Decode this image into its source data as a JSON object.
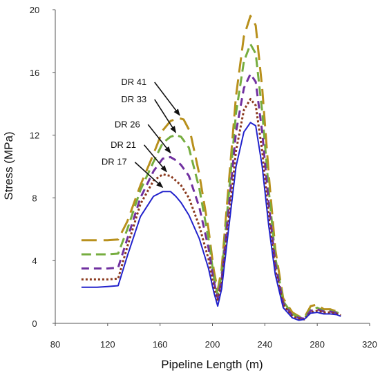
{
  "chart_data": {
    "type": "line",
    "xlabel": "Pipeline Length (m)",
    "ylabel": "Stress (MPa)",
    "xlim": [
      80,
      320
    ],
    "ylim": [
      0,
      20
    ],
    "x_ticks": [
      80,
      120,
      160,
      200,
      240,
      280,
      320
    ],
    "y_ticks": [
      0,
      4,
      8,
      12,
      16,
      20
    ],
    "grid": false,
    "legend": "none",
    "series": [
      {
        "name": "DR 41",
        "color": "#b8901c",
        "dash": "long-dash",
        "points": [
          [
            100,
            5.3
          ],
          [
            112,
            5.3
          ],
          [
            120,
            5.3
          ],
          [
            128,
            5.35
          ],
          [
            135,
            6.5
          ],
          [
            145,
            8.8
          ],
          [
            155,
            10.8
          ],
          [
            162,
            12.3
          ],
          [
            168,
            12.9
          ],
          [
            174,
            13.1
          ],
          [
            178,
            13.0
          ],
          [
            183,
            12.2
          ],
          [
            190,
            9.5
          ],
          [
            197,
            6.0
          ],
          [
            201,
            3.4
          ],
          [
            204,
            2.1
          ],
          [
            207,
            3.5
          ],
          [
            212,
            8.5
          ],
          [
            218,
            14.5
          ],
          [
            224,
            18.3
          ],
          [
            229,
            19.6
          ],
          [
            233,
            19.0
          ],
          [
            238,
            15.0
          ],
          [
            243,
            9.5
          ],
          [
            248,
            4.7
          ],
          [
            254,
            1.6
          ],
          [
            261,
            0.7
          ],
          [
            266,
            0.45
          ],
          [
            270,
            0.35
          ],
          [
            275,
            1.1
          ],
          [
            280,
            1.2
          ],
          [
            285,
            0.9
          ],
          [
            290,
            0.9
          ],
          [
            295,
            0.75
          ],
          [
            298,
            0.6
          ]
        ]
      },
      {
        "name": "DR 33",
        "color": "#76ad3f",
        "dash": "medium-dash",
        "points": [
          [
            100,
            4.4
          ],
          [
            112,
            4.4
          ],
          [
            120,
            4.4
          ],
          [
            128,
            4.45
          ],
          [
            135,
            6.0
          ],
          [
            145,
            8.5
          ],
          [
            155,
            10.3
          ],
          [
            162,
            11.5
          ],
          [
            168,
            11.9
          ],
          [
            172,
            12.0
          ],
          [
            176,
            11.9
          ],
          [
            182,
            11.2
          ],
          [
            190,
            8.6
          ],
          [
            197,
            5.4
          ],
          [
            201,
            3.0
          ],
          [
            204,
            1.8
          ],
          [
            207,
            3.1
          ],
          [
            212,
            7.8
          ],
          [
            218,
            13.4
          ],
          [
            224,
            16.7
          ],
          [
            229,
            17.8
          ],
          [
            233,
            17.2
          ],
          [
            238,
            13.5
          ],
          [
            243,
            8.5
          ],
          [
            248,
            4.2
          ],
          [
            254,
            1.4
          ],
          [
            261,
            0.6
          ],
          [
            266,
            0.4
          ],
          [
            270,
            0.3
          ],
          [
            275,
            0.9
          ],
          [
            280,
            1.0
          ],
          [
            285,
            0.8
          ],
          [
            290,
            0.8
          ],
          [
            295,
            0.7
          ],
          [
            298,
            0.55
          ]
        ]
      },
      {
        "name": "DR 26",
        "color": "#7030a0",
        "dash": "dash",
        "points": [
          [
            100,
            3.5
          ],
          [
            112,
            3.5
          ],
          [
            120,
            3.5
          ],
          [
            128,
            3.55
          ],
          [
            135,
            5.4
          ],
          [
            145,
            8.0
          ],
          [
            155,
            9.7
          ],
          [
            162,
            10.5
          ],
          [
            168,
            10.6
          ],
          [
            172,
            10.4
          ],
          [
            176,
            10.1
          ],
          [
            182,
            9.4
          ],
          [
            190,
            7.4
          ],
          [
            197,
            4.8
          ],
          [
            201,
            2.7
          ],
          [
            204,
            1.6
          ],
          [
            207,
            2.8
          ],
          [
            212,
            7.0
          ],
          [
            218,
            12.2
          ],
          [
            224,
            15.0
          ],
          [
            229,
            15.9
          ],
          [
            233,
            15.4
          ],
          [
            238,
            12.2
          ],
          [
            243,
            7.6
          ],
          [
            248,
            3.8
          ],
          [
            254,
            1.3
          ],
          [
            261,
            0.5
          ],
          [
            266,
            0.35
          ],
          [
            270,
            0.3
          ],
          [
            275,
            0.8
          ],
          [
            280,
            0.9
          ],
          [
            285,
            0.75
          ],
          [
            290,
            0.75
          ],
          [
            295,
            0.65
          ],
          [
            298,
            0.5
          ]
        ]
      },
      {
        "name": "DR 21",
        "color": "#8b3a1e",
        "dash": "dot",
        "points": [
          [
            100,
            2.8
          ],
          [
            112,
            2.8
          ],
          [
            120,
            2.8
          ],
          [
            128,
            2.85
          ],
          [
            135,
            4.9
          ],
          [
            145,
            7.6
          ],
          [
            155,
            9.1
          ],
          [
            162,
            9.5
          ],
          [
            168,
            9.4
          ],
          [
            172,
            9.1
          ],
          [
            176,
            8.8
          ],
          [
            182,
            8.0
          ],
          [
            190,
            6.2
          ],
          [
            197,
            4.1
          ],
          [
            201,
            2.3
          ],
          [
            204,
            1.4
          ],
          [
            207,
            2.5
          ],
          [
            212,
            6.3
          ],
          [
            218,
            11.0
          ],
          [
            224,
            13.6
          ],
          [
            229,
            14.3
          ],
          [
            233,
            13.9
          ],
          [
            238,
            11.0
          ],
          [
            243,
            6.8
          ],
          [
            248,
            3.4
          ],
          [
            254,
            1.2
          ],
          [
            261,
            0.45
          ],
          [
            266,
            0.3
          ],
          [
            270,
            0.25
          ],
          [
            275,
            0.7
          ],
          [
            280,
            0.8
          ],
          [
            285,
            0.7
          ],
          [
            290,
            0.7
          ],
          [
            295,
            0.6
          ],
          [
            298,
            0.5
          ]
        ]
      },
      {
        "name": "DR 17",
        "color": "#2222cc",
        "dash": "solid",
        "points": [
          [
            100,
            2.3
          ],
          [
            112,
            2.3
          ],
          [
            120,
            2.35
          ],
          [
            128,
            2.4
          ],
          [
            135,
            4.3
          ],
          [
            145,
            6.8
          ],
          [
            155,
            8.1
          ],
          [
            162,
            8.4
          ],
          [
            168,
            8.4
          ],
          [
            172,
            8.1
          ],
          [
            176,
            7.7
          ],
          [
            182,
            6.9
          ],
          [
            190,
            5.4
          ],
          [
            197,
            3.5
          ],
          [
            201,
            2.0
          ],
          [
            204,
            1.1
          ],
          [
            207,
            2.2
          ],
          [
            212,
            5.8
          ],
          [
            218,
            10.0
          ],
          [
            224,
            12.2
          ],
          [
            229,
            12.8
          ],
          [
            233,
            12.6
          ],
          [
            238,
            10.0
          ],
          [
            243,
            6.2
          ],
          [
            248,
            3.1
          ],
          [
            254,
            1.0
          ],
          [
            261,
            0.35
          ],
          [
            266,
            0.2
          ],
          [
            270,
            0.25
          ],
          [
            275,
            0.65
          ],
          [
            280,
            0.7
          ],
          [
            285,
            0.6
          ],
          [
            290,
            0.6
          ],
          [
            295,
            0.55
          ],
          [
            298,
            0.45
          ]
        ]
      }
    ],
    "annotations": [
      {
        "text": "DR 41",
        "label_at": [
          140,
          15.2
        ],
        "arrow_to": [
          175,
          13.0
        ]
      },
      {
        "text": "DR 33",
        "label_at": [
          140,
          14.1
        ],
        "arrow_to": [
          172,
          11.9
        ]
      },
      {
        "text": "DR 26",
        "label_at": [
          135,
          12.5
        ],
        "arrow_to": [
          168,
          10.6
        ]
      },
      {
        "text": "DR 21",
        "label_at": [
          132,
          11.2
        ],
        "arrow_to": [
          165,
          9.4
        ]
      },
      {
        "text": "DR 17",
        "label_at": [
          125,
          10.1
        ],
        "arrow_to": [
          162,
          8.4
        ]
      }
    ]
  }
}
